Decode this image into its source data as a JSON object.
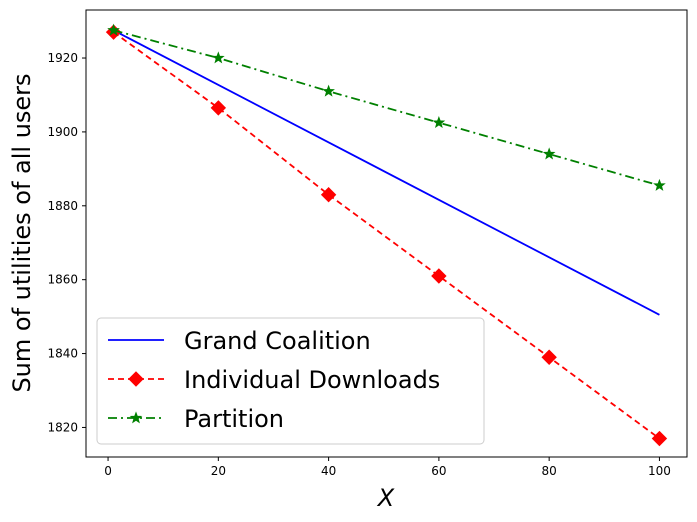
{
  "chart_data": {
    "type": "line",
    "xlabel": "X",
    "ylabel": "Sum of utilities of all users",
    "xlim": [
      -4,
      105
    ],
    "ylim": [
      1812,
      1933
    ],
    "xticks": [
      0,
      20,
      40,
      60,
      80,
      100
    ],
    "yticks": [
      1820,
      1840,
      1860,
      1880,
      1900,
      1920
    ],
    "grid": false,
    "legend_position": "lower-left",
    "series": [
      {
        "name": "Grand Coalition",
        "color": "#0000ff",
        "line_style": "solid",
        "marker": "none",
        "x": [
          1,
          100
        ],
        "y": [
          1927.5,
          1850.5
        ]
      },
      {
        "name": "Individual Downloads",
        "color": "#ff0000",
        "line_style": "dashed",
        "marker": "diamond",
        "x": [
          1,
          20,
          40,
          60,
          80,
          100
        ],
        "y": [
          1927,
          1906.5,
          1883,
          1861,
          1839,
          1817
        ]
      },
      {
        "name": "Partition",
        "color": "#008000",
        "line_style": "dashdot",
        "marker": "star",
        "x": [
          1,
          20,
          40,
          60,
          80,
          100
        ],
        "y": [
          1927.5,
          1920,
          1911,
          1902.5,
          1894,
          1885.5
        ]
      }
    ]
  }
}
